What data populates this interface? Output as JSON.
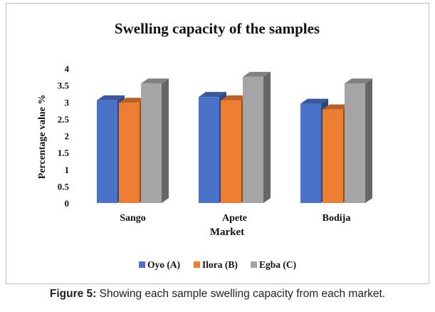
{
  "chart_data": {
    "type": "bar",
    "title": "Swelling capacity of the samples",
    "xlabel": "Market",
    "ylabel": "Percentage value %",
    "categories": [
      "Sango",
      "Apete",
      "Bodija"
    ],
    "y_ticks": [
      "0",
      "0.5",
      "1",
      "1.5",
      "2",
      "2.5",
      "3",
      "3.5",
      "4"
    ],
    "ylim": [
      0,
      4
    ],
    "grid": false,
    "legend_position": "bottom",
    "series": [
      {
        "name": "Oyo (A)",
        "color": "#4a72c8",
        "values": [
          3.05,
          3.15,
          2.95
        ]
      },
      {
        "name": "Ilora (B)",
        "color": "#ed7d31",
        "values": [
          2.98,
          3.05,
          2.78
        ]
      },
      {
        "name": "Egba (C)",
        "color": "#a5a5a5",
        "values": [
          3.55,
          3.75,
          3.55
        ]
      }
    ]
  },
  "caption": {
    "label": "Figure 5:",
    "text": " Showing each sample swelling capacity from each market."
  }
}
